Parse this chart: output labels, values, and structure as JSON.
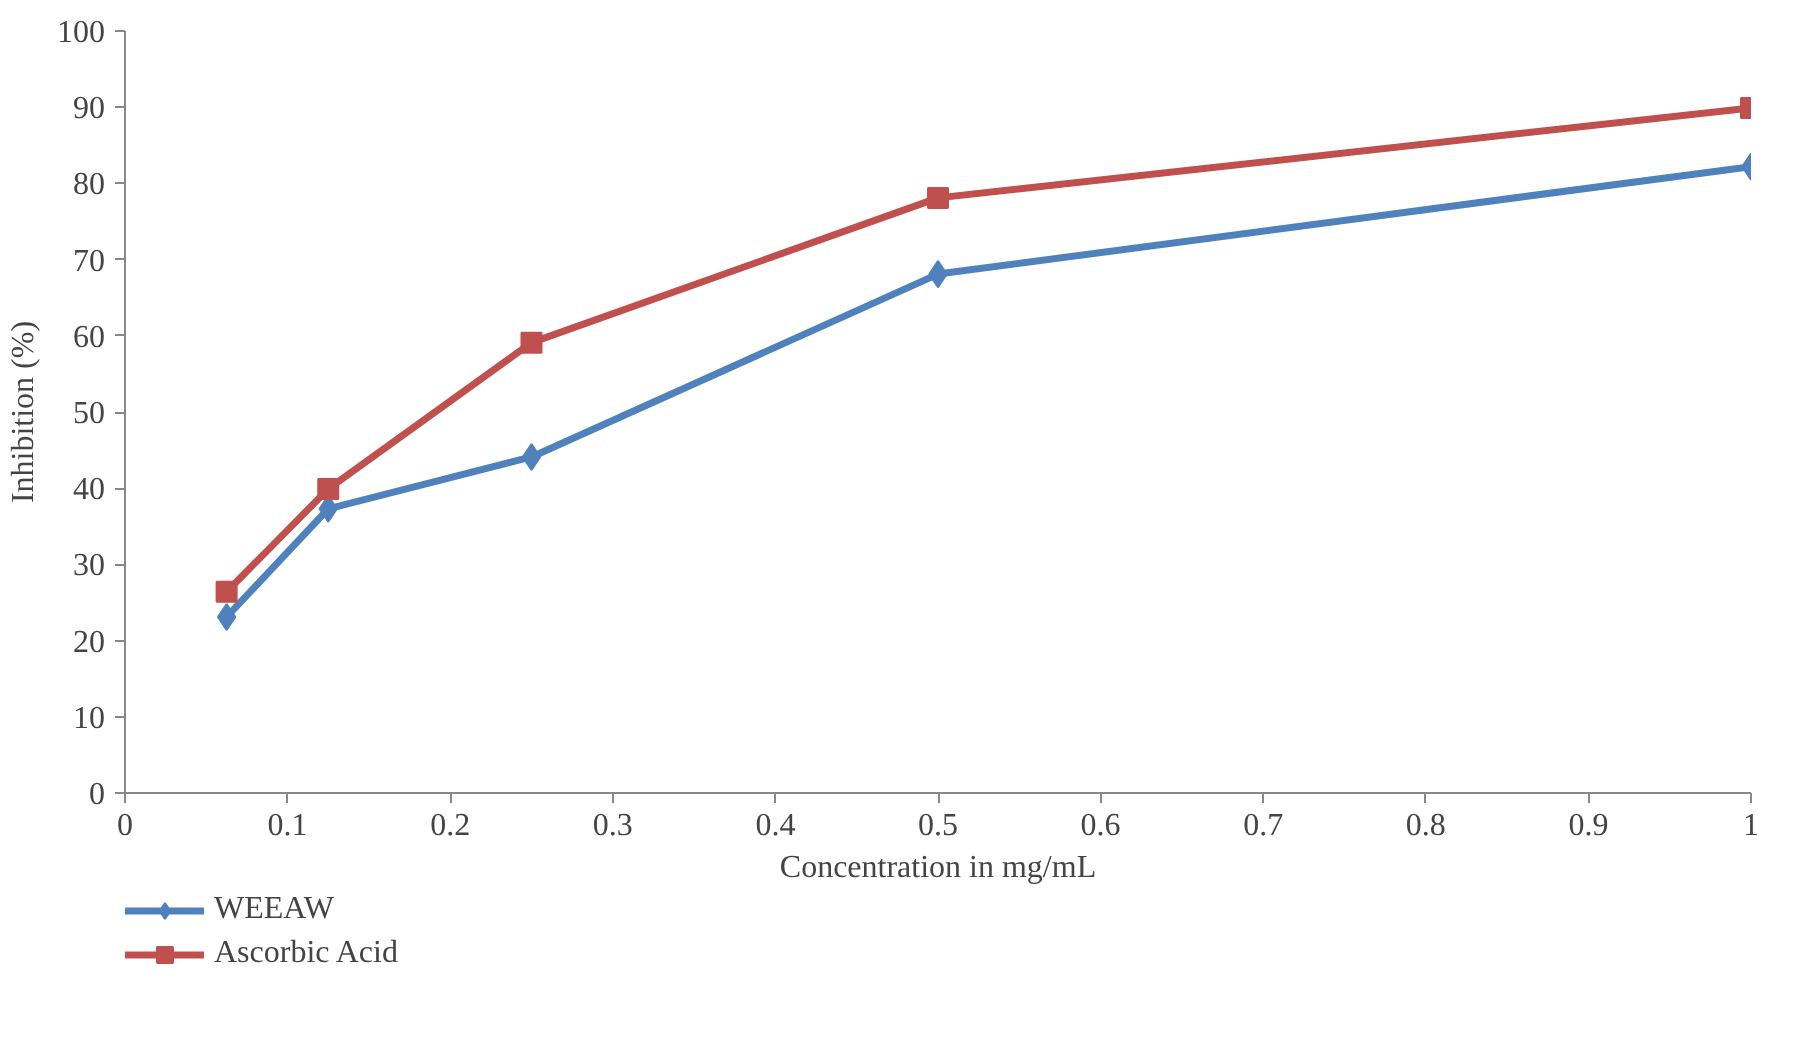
{
  "chart_data": {
    "type": "line",
    "xlabel": "Concentration in mg/mL",
    "ylabel": "Inhibition (%)",
    "x": [
      0.0625,
      0.125,
      0.25,
      0.5,
      1
    ],
    "series": [
      {
        "name": "WEEAW",
        "color": "#4f81bd",
        "marker": "diamond",
        "values": [
          23.1,
          37.3,
          44.1,
          68.1,
          82.2
        ]
      },
      {
        "name": "Ascorbic Acid",
        "color": "#c0504d",
        "marker": "square",
        "values": [
          26.4,
          39.9,
          59.1,
          78.1,
          89.9
        ]
      }
    ],
    "xlim": [
      0,
      1
    ],
    "xticks": [
      0,
      0.1,
      0.2,
      0.3,
      0.4,
      0.5,
      0.6,
      0.7,
      0.8,
      0.9,
      1
    ],
    "ylim": [
      0,
      100
    ],
    "yticks": [
      0,
      10,
      20,
      30,
      40,
      50,
      60,
      70,
      80,
      90,
      100
    ],
    "grid": false,
    "legend": "bottom left",
    "line_style": "solid"
  }
}
